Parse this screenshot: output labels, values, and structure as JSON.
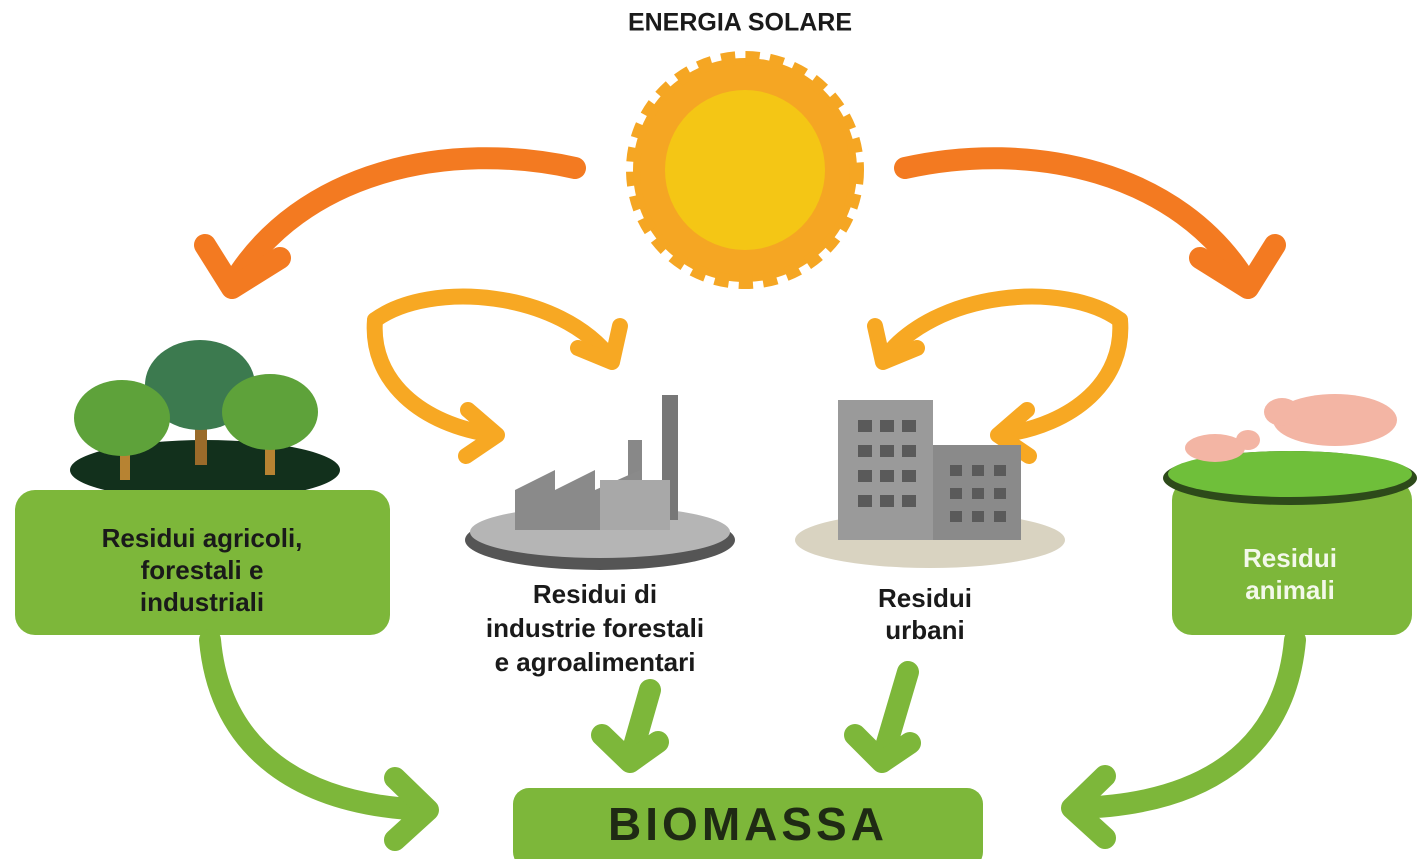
{
  "title": "ENERGIA SOLARE",
  "nodes": [
    {
      "lines": [
        "Residui agricoli,",
        "forestali e",
        "industriali"
      ]
    },
    {
      "lines": [
        "Residui di",
        "industrie forestali",
        "e agroalimentari"
      ]
    },
    {
      "lines": [
        "Residui",
        "urbani"
      ]
    },
    {
      "lines": [
        "Residui",
        "animali"
      ]
    }
  ],
  "result": "BIOMASSA"
}
